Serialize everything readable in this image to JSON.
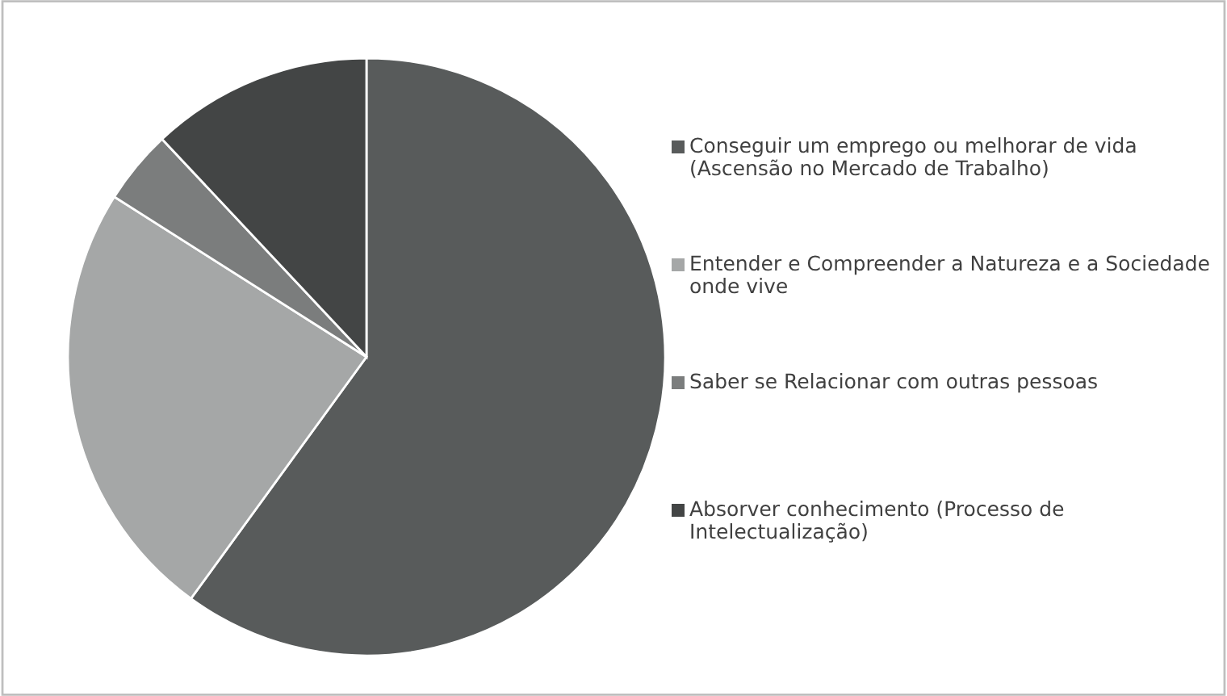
{
  "chart_data": {
    "type": "pie",
    "categories": [
      "Conseguir um emprego ou melhorar de vida (Ascensão no Mercado de Trabalho)",
      "Entender e Compreender a Natureza e a Sociedade onde vive",
      "Saber se Relacionar com outras pessoas",
      "Absorver conhecimento (Processo de Intelectualização)"
    ],
    "values": [
      60,
      24,
      4,
      12
    ],
    "colors": [
      "#585b5b",
      "#a5a7a7",
      "#7b7d7d",
      "#434545"
    ],
    "legend": "right"
  }
}
